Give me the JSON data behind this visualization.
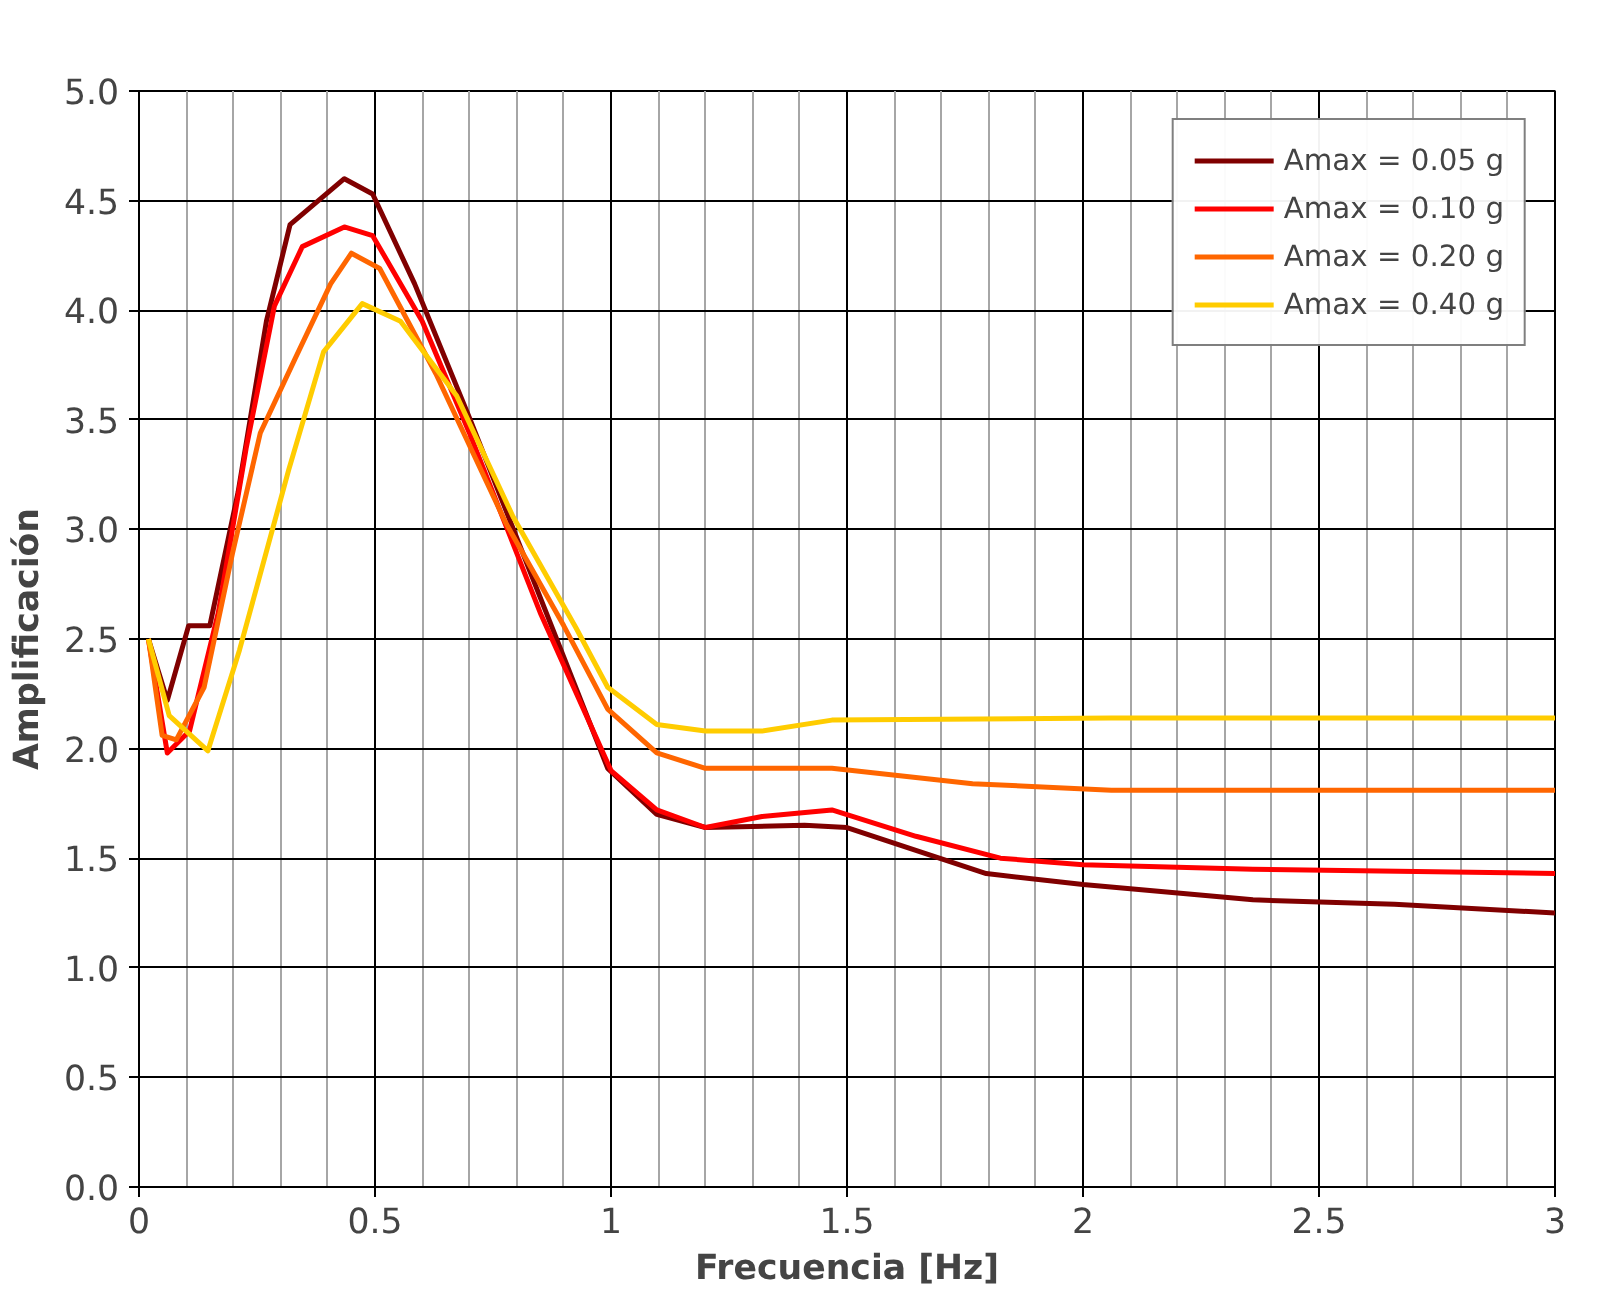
{
  "chart_data": {
    "type": "line",
    "xlabel": "Frecuencia [Hz]",
    "ylabel": "Amplificación",
    "xlim": [
      0,
      3
    ],
    "xticks": [
      0,
      0.5,
      1,
      1.5,
      2,
      2.5,
      3
    ],
    "ylim": [
      0,
      5
    ],
    "yticks": [
      {
        "value": 0,
        "label": "0.0"
      },
      {
        "value": 0.5,
        "label": "0.5"
      },
      {
        "value": 1,
        "label": "1.0"
      },
      {
        "value": 1.5,
        "label": "1.5"
      },
      {
        "value": 2,
        "label": "2.0"
      },
      {
        "value": 2.5,
        "label": "2.5"
      },
      {
        "value": 3,
        "label": "3.0"
      },
      {
        "value": 3.5,
        "label": "3.5"
      },
      {
        "value": 4,
        "label": "4.0"
      },
      {
        "value": 4.5,
        "label": "4.5"
      },
      {
        "value": 5,
        "label": "5.0"
      }
    ],
    "grid": true,
    "legend": "top right",
    "marker": "none",
    "line_style": "solid",
    "series": [
      {
        "name": "Amax = 0.05 g",
        "color": "#800000",
        "x": [
          0.02,
          0.06,
          0.105,
          0.15,
          0.21,
          0.27,
          0.32,
          0.435,
          0.495,
          0.584,
          0.7,
          0.85,
          0.993,
          1.097,
          1.2,
          1.41,
          1.5,
          1.795,
          2.0,
          2.36,
          2.66,
          3.0
        ],
        "values": [
          2.5,
          2.22,
          2.56,
          2.56,
          3.17,
          3.95,
          4.39,
          4.6,
          4.53,
          4.12,
          3.51,
          2.69,
          1.91,
          1.7,
          1.64,
          1.65,
          1.64,
          1.43,
          1.38,
          1.31,
          1.29,
          1.25
        ]
      },
      {
        "name": "Amax = 0.10 g",
        "color": "#ff0000",
        "x": [
          0.02,
          0.06,
          0.107,
          0.168,
          0.227,
          0.287,
          0.346,
          0.435,
          0.495,
          0.6,
          0.7,
          0.85,
          1.0,
          1.097,
          1.2,
          1.32,
          1.468,
          1.646,
          1.825,
          2.0,
          2.36,
          3.0
        ],
        "values": [
          2.5,
          1.98,
          2.08,
          2.62,
          3.37,
          4.02,
          4.29,
          4.38,
          4.34,
          3.95,
          3.44,
          2.62,
          1.9,
          1.72,
          1.64,
          1.69,
          1.72,
          1.6,
          1.5,
          1.47,
          1.45,
          1.43
        ]
      },
      {
        "name": "Amax = 0.20 g",
        "color": "#ff6600",
        "x": [
          0.02,
          0.049,
          0.079,
          0.138,
          0.198,
          0.257,
          0.331,
          0.406,
          0.45,
          0.51,
          0.629,
          0.777,
          0.9,
          0.993,
          1.097,
          1.2,
          1.468,
          1.766,
          2.06,
          3.0
        ],
        "values": [
          2.5,
          2.06,
          2.04,
          2.28,
          2.89,
          3.44,
          3.78,
          4.12,
          4.26,
          4.19,
          3.71,
          3.03,
          2.56,
          2.18,
          1.98,
          1.91,
          1.91,
          1.84,
          1.81,
          1.81
        ]
      },
      {
        "name": "Amax = 0.40 g",
        "color": "#ffcc00",
        "x": [
          0.02,
          0.064,
          0.146,
          0.213,
          0.317,
          0.391,
          0.473,
          0.554,
          0.673,
          0.792,
          0.926,
          0.993,
          1.097,
          1.2,
          1.32,
          1.468,
          2.06,
          3.0
        ],
        "values": [
          2.5,
          2.15,
          1.99,
          2.45,
          3.27,
          3.81,
          4.03,
          3.95,
          3.61,
          3.06,
          2.55,
          2.28,
          2.11,
          2.08,
          2.08,
          2.13,
          2.14,
          2.14
        ]
      }
    ]
  }
}
